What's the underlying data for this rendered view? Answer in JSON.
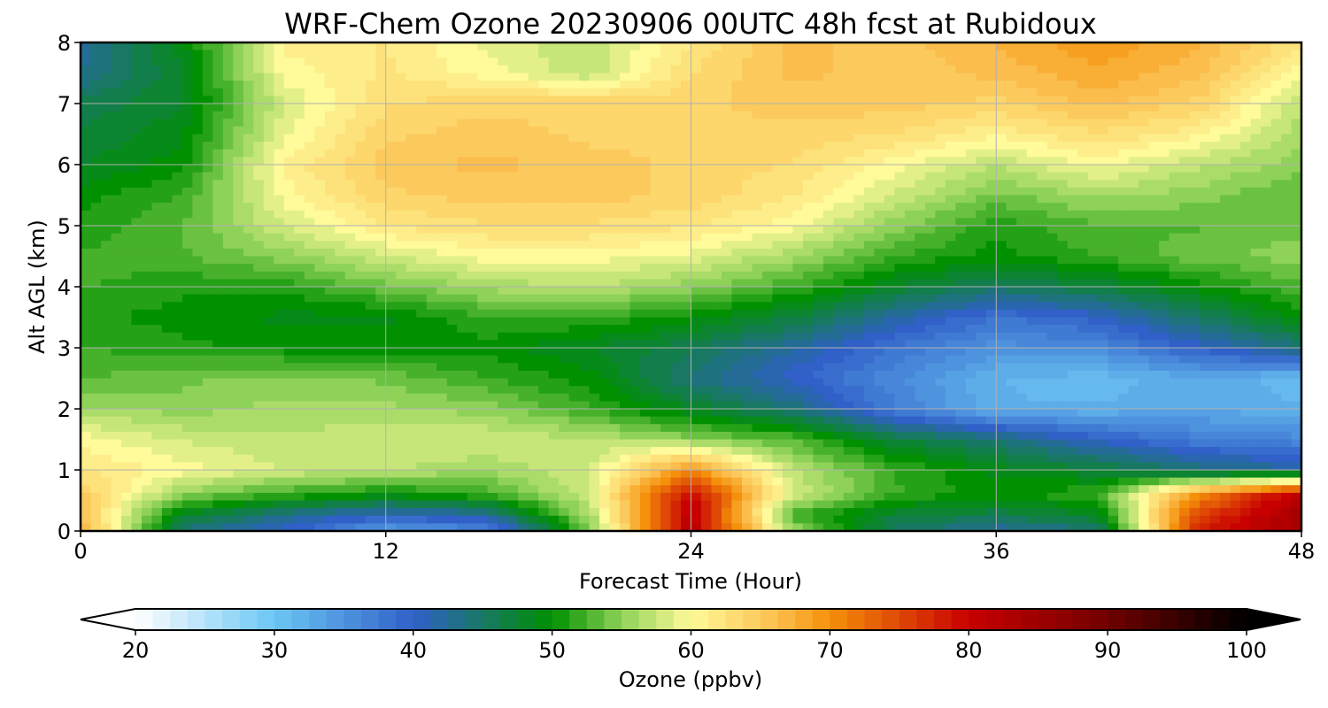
{
  "chart_data": {
    "type": "heatmap",
    "title": "WRF-Chem Ozone  20230906 00UTC 48h fcst at Rubidoux",
    "xlabel": "Forecast Time (Hour)",
    "ylabel": "Alt AGL (km)",
    "xlim": [
      0,
      48
    ],
    "ylim": [
      0,
      8
    ],
    "x_ticks": [
      "0",
      "12",
      "24",
      "36",
      "48"
    ],
    "y_ticks": [
      "0",
      "1",
      "2",
      "3",
      "4",
      "5",
      "6",
      "7",
      "8"
    ],
    "grid": true,
    "colorbar": {
      "label": "Ozone  (ppbv)",
      "range": [
        20,
        100
      ],
      "ticks": [
        "20",
        "30",
        "40",
        "50",
        "60",
        "70",
        "80",
        "90",
        "100"
      ],
      "extend": "both",
      "stops": [
        {
          "value": 20,
          "color": "#ffffff"
        },
        {
          "value": 30,
          "color": "#6cc6f4"
        },
        {
          "value": 40,
          "color": "#3060c8"
        },
        {
          "value": 50,
          "color": "#009000"
        },
        {
          "value": 55,
          "color": "#8fd258"
        },
        {
          "value": 60,
          "color": "#fffa9a"
        },
        {
          "value": 66,
          "color": "#fbc050"
        },
        {
          "value": 70,
          "color": "#f5900a"
        },
        {
          "value": 80,
          "color": "#c80000"
        },
        {
          "value": 90,
          "color": "#700000"
        },
        {
          "value": 100,
          "color": "#000000"
        }
      ]
    },
    "field": {
      "x": [
        0,
        4,
        8,
        12,
        16,
        20,
        24,
        28,
        32,
        36,
        40,
        44,
        48
      ],
      "y": [
        0,
        0.25,
        0.6,
        1,
        1.5,
        2,
        2.5,
        3,
        3.5,
        4,
        4.5,
        5,
        5.5,
        6,
        6.5,
        7,
        7.5,
        8
      ],
      "values": [
        [
          68,
          44,
          40,
          34,
          36,
          54,
          82,
          56,
          45,
          42,
          44,
          78,
          84
        ],
        [
          66,
          48,
          43,
          40,
          42,
          56,
          82,
          52,
          47,
          46,
          48,
          76,
          84
        ],
        [
          65,
          55,
          52,
          50,
          52,
          58,
          80,
          58,
          52,
          50,
          52,
          70,
          82
        ],
        [
          62,
          60,
          58,
          57,
          56,
          58,
          70,
          57,
          52,
          49,
          47,
          44,
          42
        ],
        [
          60,
          58,
          57,
          58,
          58,
          57,
          55,
          53,
          47,
          44,
          40,
          37,
          36
        ],
        [
          56,
          55,
          56,
          56,
          55,
          52,
          48,
          44,
          37,
          32,
          32,
          33,
          32
        ],
        [
          53,
          54,
          55,
          54,
          52,
          50,
          44,
          40,
          36,
          32,
          31,
          33,
          31
        ],
        [
          52,
          51,
          50,
          50,
          50,
          48,
          46,
          42,
          38,
          35,
          36,
          40,
          44
        ],
        [
          51,
          50,
          49,
          49,
          52,
          52,
          50,
          47,
          42,
          38,
          40,
          45,
          50
        ],
        [
          52,
          51,
          51,
          54,
          56,
          57,
          55,
          52,
          48,
          45,
          47,
          50,
          53
        ],
        [
          52,
          53,
          55,
          58,
          60,
          60,
          59,
          56,
          52,
          50,
          52,
          54,
          55
        ],
        [
          51,
          53,
          58,
          62,
          63,
          63,
          62,
          60,
          55,
          51,
          53,
          53,
          54
        ],
        [
          50,
          52,
          60,
          64,
          65,
          65,
          64,
          62,
          58,
          54,
          56,
          55,
          53
        ],
        [
          48,
          50,
          61,
          65,
          66,
          65,
          64,
          63,
          60,
          57,
          60,
          57,
          55
        ],
        [
          47,
          49,
          59,
          64,
          65,
          64,
          64,
          64,
          63,
          61,
          63,
          61,
          56
        ],
        [
          46,
          48,
          58,
          63,
          64,
          64,
          64,
          65,
          65,
          64,
          66,
          64,
          57
        ],
        [
          43,
          48,
          60,
          62,
          60,
          57,
          63,
          66,
          65,
          66,
          68,
          66,
          60
        ],
        [
          42,
          49,
          61,
          62,
          59,
          57,
          62,
          66,
          65,
          67,
          69,
          67,
          62
        ]
      ]
    }
  }
}
